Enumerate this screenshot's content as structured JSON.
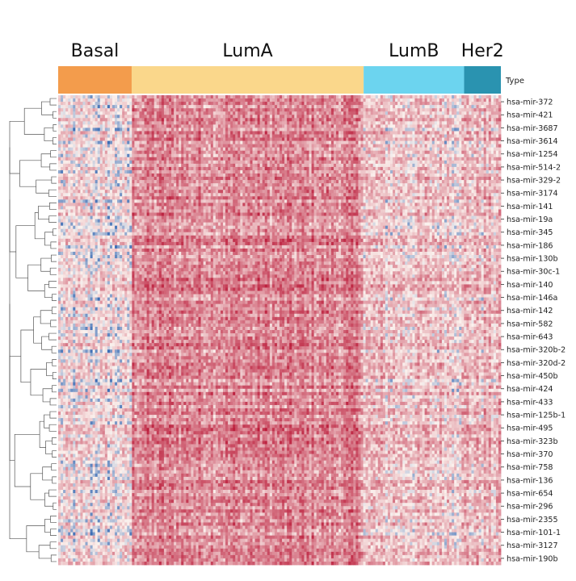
{
  "chart_data": {
    "type": "heatmap",
    "title": "",
    "column_annotation": {
      "label": "Type",
      "groups": [
        {
          "name": "Basal",
          "color": "#f39c4c",
          "fraction": 0.166
        },
        {
          "name": "LumA",
          "color": "#fad78b",
          "fraction": 0.524
        },
        {
          "name": "LumB",
          "color": "#6cd4ef",
          "fraction": 0.227
        },
        {
          "name": "Her2",
          "color": "#2a93b0",
          "fraction": 0.083
        }
      ]
    },
    "row_labels": [
      "hsa-mir-372",
      "hsa-mir-421",
      "hsa-mir-3687",
      "hsa-mir-3614",
      "hsa-mir-1254",
      "hsa-mir-514-2",
      "hsa-mir-329-2",
      "hsa-mir-3174",
      "hsa-mir-141",
      "hsa-mir-19a",
      "hsa-mir-345",
      "hsa-mir-186",
      "hsa-mir-130b",
      "hsa-mir-30c-1",
      "hsa-mir-140",
      "hsa-mir-146a",
      "hsa-mir-142",
      "hsa-mir-582",
      "hsa-mir-643",
      "hsa-mir-320b-2",
      "hsa-mir-320d-2",
      "hsa-mir-450b",
      "hsa-mir-424",
      "hsa-mir-433",
      "hsa-mir-125b-1",
      "hsa-mir-495",
      "hsa-mir-323b",
      "hsa-mir-370",
      "hsa-mir-758",
      "hsa-mir-136",
      "hsa-mir-654",
      "hsa-mir-296",
      "hsa-mir-2355",
      "hsa-mir-101-1",
      "hsa-mir-3127",
      "hsa-mir-190b"
    ],
    "group_mean_expression": {
      "Basal": 0.3,
      "LumA": 0.58,
      "LumB": 0.4,
      "Her2": 0.42
    },
    "color_scale": {
      "low": "#3b6db5",
      "mid": "#fbf2ee",
      "high": "#b40426",
      "range": [
        0,
        1
      ]
    },
    "dendrogram": "rows",
    "legend": "none",
    "grid": false
  }
}
